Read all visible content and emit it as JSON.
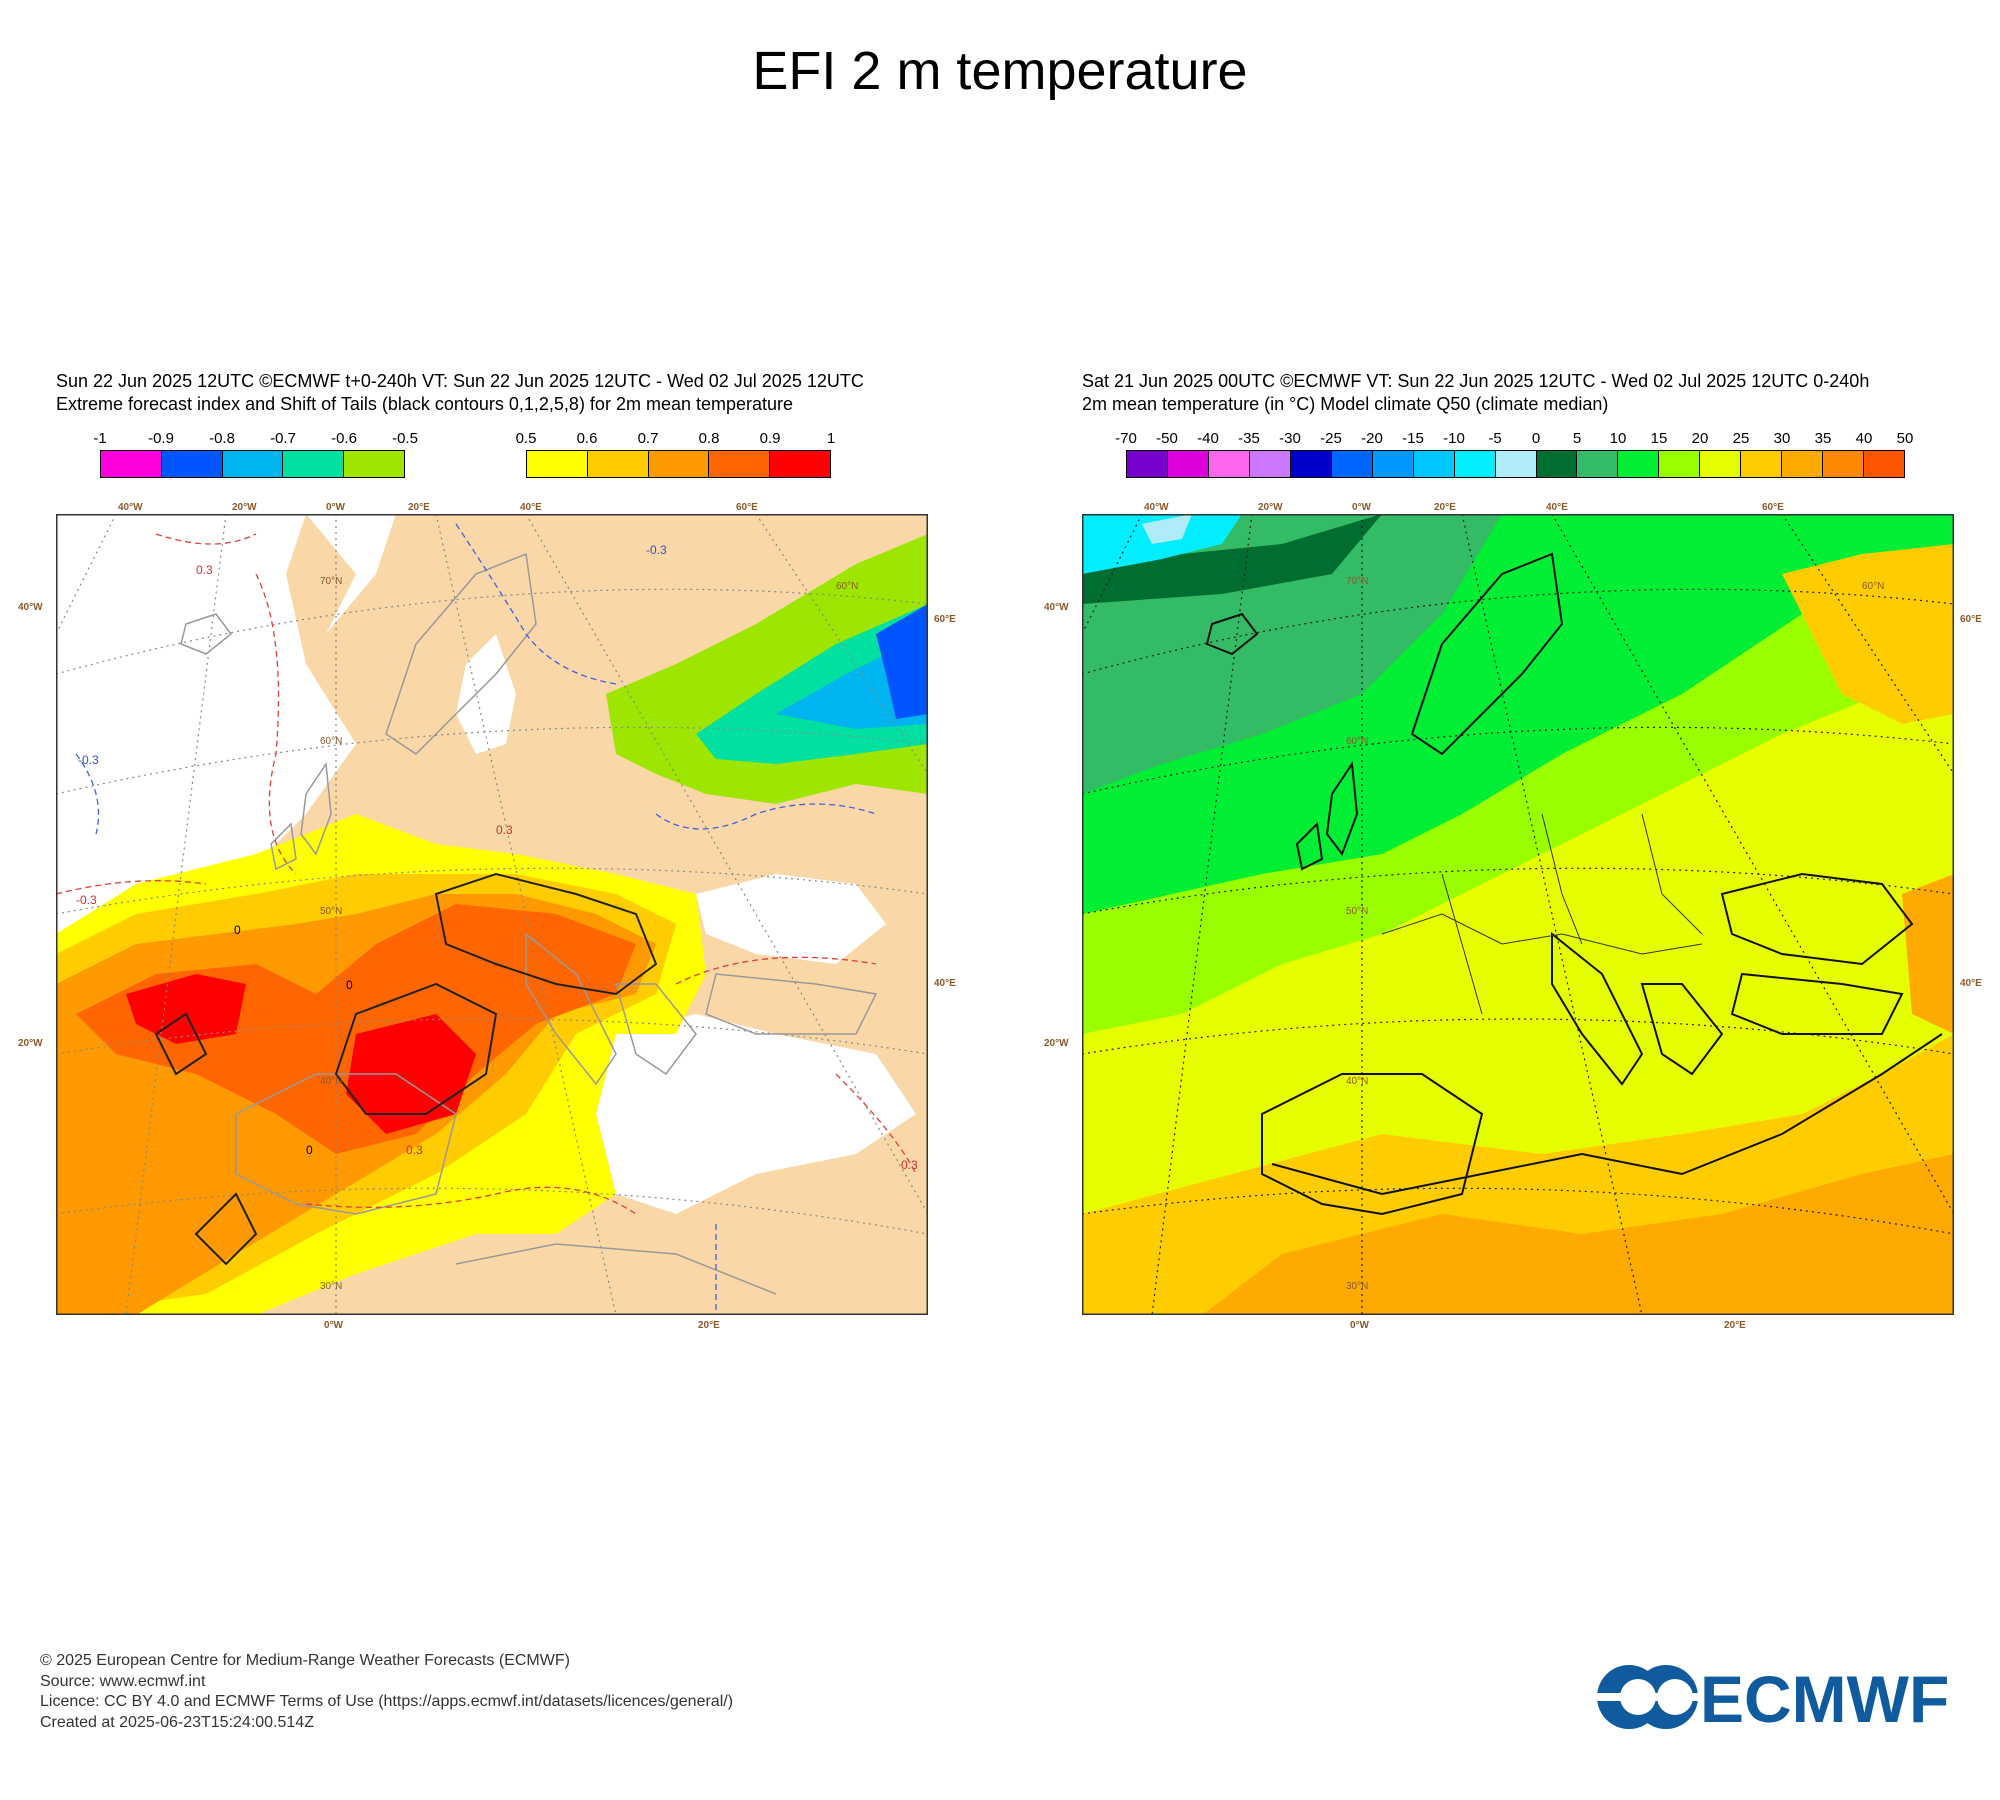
{
  "title": "EFI 2 m temperature",
  "left_panel": {
    "line1": "Sun 22 Jun 2025 12UTC ©ECMWF t+0-240h  VT: Sun 22 Jun 2025 12UTC - Wed 02 Jul 2025 12UTC",
    "line2": "Extreme forecast index and Shift of Tails (black contours 0,1,2,5,8) for 2m mean temperature",
    "cold_scale": {
      "labels": [
        "-1",
        "-0.9",
        "-0.8",
        "-0.7",
        "-0.6",
        "-0.5"
      ],
      "colors": [
        "#ff00dd",
        "#0055ff",
        "#00b4f0",
        "#00e0a0",
        "#9ee600"
      ]
    },
    "warm_scale": {
      "labels": [
        "0.5",
        "0.6",
        "0.7",
        "0.8",
        "0.9",
        "1"
      ],
      "colors": [
        "#ffff00",
        "#ffcc00",
        "#ff9900",
        "#ff6600",
        "#ff0000"
      ]
    },
    "contour_labels": [
      "-0.3",
      "0.3",
      "0"
    ],
    "lon_top": [
      "40°W",
      "20°W",
      "0°W",
      "20°E",
      "40°E",
      "60°E"
    ],
    "lon_bottom": [
      "0°W",
      "20°E"
    ],
    "lat_left": [
      "40°W",
      "20°W"
    ],
    "lat_right": [
      "60°E",
      "40°E"
    ],
    "lat_inner": [
      "70°N",
      "60°N",
      "50°N",
      "40°N",
      "30°N"
    ],
    "colors": {
      "land": "#fad7a6",
      "sea": "#ffffff"
    }
  },
  "right_panel": {
    "line1": "Sat 21 Jun 2025 00UTC ©ECMWF VT: Sun 22 Jun 2025 12UTC - Wed 02 Jul 2025 12UTC   0-240h",
    "line2": "2m mean temperature (in °C)  Model climate Q50 (climate median)",
    "scale": {
      "labels": [
        "-70",
        "-50",
        "-40",
        "-35",
        "-30",
        "-25",
        "-20",
        "-15",
        "-10",
        "-5",
        "0",
        "5",
        "10",
        "15",
        "20",
        "25",
        "30",
        "35",
        "40",
        "50"
      ],
      "colors": [
        "#7700cc",
        "#dd00dd",
        "#ff66ee",
        "#cc77ff",
        "#0000cc",
        "#0066ff",
        "#0099ff",
        "#00c8ff",
        "#00eeff",
        "#b0ecf8",
        "#006e30",
        "#33bb66",
        "#00ee33",
        "#99ff00",
        "#e6ff00",
        "#ffcc00",
        "#ffaa00",
        "#ff8800",
        "#ff5500",
        "#ff2200"
      ]
    },
    "lon_top": [
      "40°W",
      "20°W",
      "0°W",
      "20°E",
      "40°E",
      "60°E"
    ],
    "lon_bottom": [
      "0°W",
      "20°E"
    ],
    "lat_left": [
      "40°W",
      "20°W"
    ],
    "lat_right": [
      "60°E",
      "40°E"
    ],
    "lat_inner": [
      "70°N",
      "60°N",
      "50°N",
      "40°N",
      "30°N"
    ]
  },
  "footer": {
    "copyright": "© 2025 European Centre for Medium-Range Weather Forecasts (ECMWF)",
    "source": "Source: www.ecmwf.int",
    "licence": "Licence: CC BY 4.0 and ECMWF Terms of Use (https://apps.ecmwf.int/datasets/licences/general/)",
    "created": "Created at 2025-06-23T15:24:00.514Z"
  },
  "logo": {
    "text": "ECMWF",
    "color": "#0f5b9e"
  }
}
